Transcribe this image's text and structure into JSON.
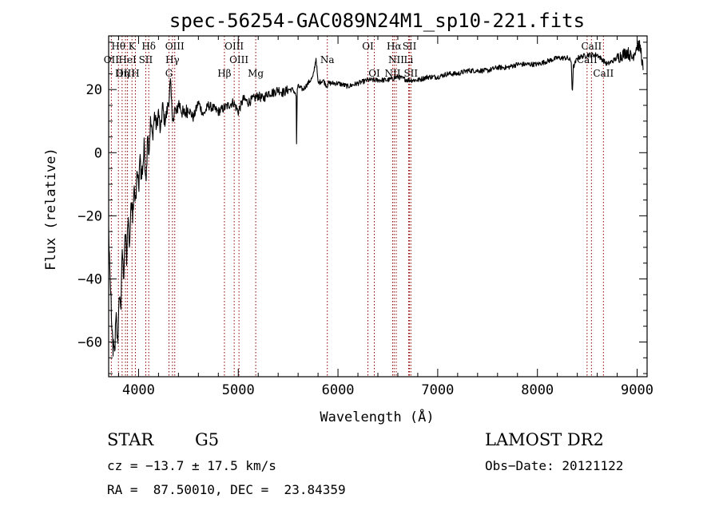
{
  "chart_data": {
    "type": "line",
    "title": "spec-56254-GAC089N24M1_sp10-221.fits",
    "xlabel": "Wavelength (Å)",
    "ylabel": "Flux (relative)",
    "xlim": [
      3700,
      9100
    ],
    "ylim": [
      -71,
      37
    ],
    "grid": false,
    "xticks": [
      4000,
      5000,
      6000,
      7000,
      8000,
      9000
    ],
    "yticks": [
      -60,
      -40,
      -20,
      0,
      20
    ],
    "xtick_labels": [
      "4000",
      "5000",
      "6000",
      "7000",
      "8000",
      "9000"
    ],
    "ytick_labels": [
      "−60",
      "−40",
      "−20",
      "0",
      "20"
    ],
    "series": [
      {
        "x": [
          3700,
          3715,
          3730,
          3745,
          3760,
          3775,
          3790,
          3805,
          3820,
          3835,
          3850,
          3865,
          3880,
          3895,
          3910,
          3925,
          3940,
          3955,
          3970,
          3985,
          4000,
          4015,
          4030,
          4045,
          4060,
          4075,
          4090,
          4105,
          4120,
          4140,
          4160,
          4180,
          4200,
          4220,
          4240,
          4260,
          4280,
          4300,
          4320,
          4340,
          4360,
          4380,
          4400,
          4450,
          4500,
          4550,
          4600,
          4650,
          4700,
          4750,
          4800,
          4850,
          4900,
          4950,
          5000,
          5050,
          5100,
          5150,
          5200,
          5250,
          5300,
          5350,
          5400,
          5450,
          5500,
          5550,
          5580,
          5585,
          5590,
          5600,
          5650,
          5700,
          5750,
          5780,
          5800,
          5850,
          5890,
          5900,
          5950,
          6000,
          6100,
          6200,
          6300,
          6400,
          6500,
          6600,
          6700,
          6800,
          6900,
          7000,
          7100,
          7200,
          7300,
          7400,
          7500,
          7600,
          7700,
          7800,
          7900,
          8000,
          8100,
          8200,
          8300,
          8340,
          8350,
          8360,
          8400,
          8500,
          8600,
          8700,
          8800,
          8850,
          8900,
          8950,
          9000,
          9020,
          9040,
          9060
        ],
        "y": [
          -25,
          -40,
          -55,
          -62,
          -65,
          -50,
          -60,
          -45,
          -52,
          -30,
          -40,
          -25,
          -35,
          -20,
          -28,
          -15,
          -22,
          -10,
          -18,
          -5,
          -12,
          0,
          -8,
          -3,
          2,
          -10,
          6,
          0,
          10,
          5,
          12,
          8,
          13,
          6,
          15,
          10,
          12,
          16,
          22,
          10,
          14,
          12,
          16,
          12,
          14,
          11,
          16,
          12,
          15,
          14,
          13,
          14,
          15,
          16,
          13,
          17,
          16,
          17,
          18,
          17,
          19,
          19,
          20,
          19,
          20,
          20,
          18,
          -1,
          20,
          21,
          20,
          22,
          24,
          30,
          22,
          23,
          21,
          22,
          22,
          22,
          21,
          22,
          23,
          23,
          23,
          24,
          23,
          23,
          24,
          24,
          25,
          25,
          26,
          26,
          26,
          27,
          27,
          28,
          28,
          28,
          29,
          30,
          30,
          29,
          18,
          27,
          30,
          31,
          31,
          28,
          30,
          31,
          32,
          30,
          34,
          34,
          32,
          26
        ]
      }
    ],
    "lines": [
      {
        "name": "Hθ",
        "x": 3798,
        "row": 0
      },
      {
        "name": "K",
        "x": 3934,
        "row": 0
      },
      {
        "name": "Hδ",
        "x": 4102,
        "row": 0
      },
      {
        "name": "OIII",
        "x": 4363,
        "row": 0
      },
      {
        "name": "OIII",
        "x": 4959,
        "row": 0
      },
      {
        "name": "OI",
        "x": 6300,
        "row": 0
      },
      {
        "name": "Hα",
        "x": 6563,
        "row": 0
      },
      {
        "name": "SII",
        "x": 6717,
        "row": 0
      },
      {
        "name": "CaII",
        "x": 8542,
        "row": 0
      },
      {
        "name": "OII",
        "x": 3727,
        "row": 1
      },
      {
        "name": "HeI",
        "x": 3889,
        "row": 1
      },
      {
        "name": "SII",
        "x": 4072,
        "row": 1
      },
      {
        "name": "Hγ",
        "x": 4340,
        "row": 1
      },
      {
        "name": "OIII",
        "x": 5007,
        "row": 1
      },
      {
        "name": "Na",
        "x": 5893,
        "row": 1
      },
      {
        "name": "NII",
        "x": 6584,
        "row": 1
      },
      {
        "name": "Li",
        "x": 6708,
        "row": 1
      },
      {
        "name": "CaII",
        "x": 8498,
        "row": 1
      },
      {
        "name": "OIII",
        "x": 3869,
        "row": 2
      },
      {
        "name": "Hη",
        "x": 3835,
        "row": 2
      },
      {
        "name": "H",
        "x": 3968,
        "row": 2
      },
      {
        "name": "G",
        "x": 4305,
        "row": 2
      },
      {
        "name": "Hβ",
        "x": 4861,
        "row": 2
      },
      {
        "name": "Mg",
        "x": 5175,
        "row": 2
      },
      {
        "name": "OI",
        "x": 6364,
        "row": 2
      },
      {
        "name": "NII",
        "x": 6548,
        "row": 2
      },
      {
        "name": "SII",
        "x": 6731,
        "row": 2
      },
      {
        "name": "CaII",
        "x": 8662,
        "row": 2
      }
    ],
    "marker_color": "#8b0000",
    "line_color": "#000000"
  },
  "info": {
    "object_class": "STAR",
    "subclass": "G5",
    "survey": "LAMOST DR2",
    "redshift": "cz = −13.7 ± 17.5 km/s",
    "obs_date": "Obs−Date: 20121122",
    "coords": "RA =  87.50010, DEC =  23.84359"
  }
}
